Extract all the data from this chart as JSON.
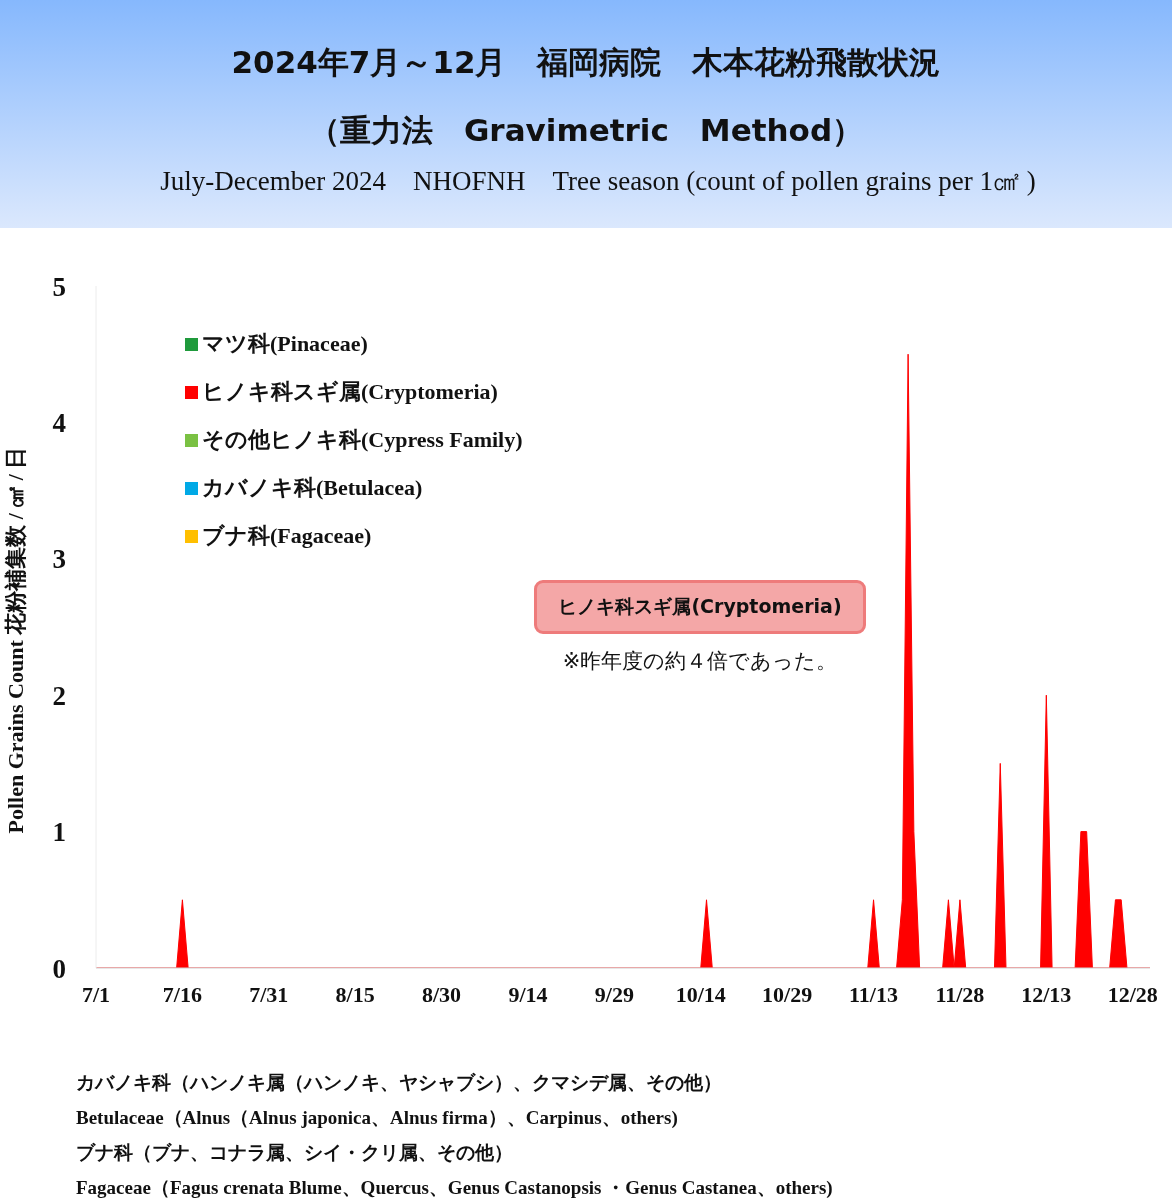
{
  "chart_data": {
    "type": "area",
    "title": "2024年7月～12月　福岡病院　木本花粉飛散状況（重力法　Gravimetric　Method）",
    "subtitle": "July-December 2024　NHOFNH　Tree season (count of pollen grains per 1㎠ )",
    "ylabel": "Pollen Grains Count 花粉補集数 / ㎠ / 日",
    "annotations": [
      "ヒノキ科スギ属(Cryptomeria)",
      "※昨年度の約４倍であった。",
      "カバノキ科（ハンノキ属（ハンノキ、ヤシャブシ）、クマシデ属、その他）",
      "Betulaceae（Alnus（Alnus japonica、Alnus firma）、Carpinus、others)",
      "ブナ科（ブナ、コナラ属、シイ・クリ属、その他）",
      "Fagaceae（Fagus crenata Blume、Quercus、Genus Castanopsis ・Genus Castanea、others)"
    ],
    "xlim": [
      "2024-07-01",
      "2024-12-31"
    ],
    "xticks": [
      {
        "value": "2024-07-01",
        "label": "7/1"
      },
      {
        "value": "2024-07-16",
        "label": "7/16"
      },
      {
        "value": "2024-07-31",
        "label": "7/31"
      },
      {
        "value": "2024-08-15",
        "label": "8/15"
      },
      {
        "value": "2024-08-30",
        "label": "8/30"
      },
      {
        "value": "2024-09-14",
        "label": "9/14"
      },
      {
        "value": "2024-09-29",
        "label": "9/29"
      },
      {
        "value": "2024-10-14",
        "label": "10/14"
      },
      {
        "value": "2024-10-29",
        "label": "10/29"
      },
      {
        "value": "2024-11-13",
        "label": "11/13"
      },
      {
        "value": "2024-11-28",
        "label": "11/28"
      },
      {
        "value": "2024-12-13",
        "label": "12/13"
      },
      {
        "value": "2024-12-28",
        "label": "12/28"
      }
    ],
    "ylim": [
      0,
      5
    ],
    "yticks": [
      0,
      1,
      2,
      3,
      4,
      5
    ],
    "grid": false,
    "legend": "top left",
    "series": [
      {
        "name": "マツ科(Pinaceae)",
        "color": "#1f9a3c"
      },
      {
        "name": "ヒノキ科スギ属(Cryptomeria)",
        "color": "#ff0000",
        "x": [
          "2024-07-01",
          "2024-07-15",
          "2024-07-16",
          "2024-07-17",
          "2024-10-14",
          "2024-10-15",
          "2024-10-16",
          "2024-11-12",
          "2024-11-13",
          "2024-11-14",
          "2024-11-17",
          "2024-11-18",
          "2024-11-19",
          "2024-11-20",
          "2024-11-21",
          "2024-11-25",
          "2024-11-26",
          "2024-11-27",
          "2024-11-28",
          "2024-11-29",
          "2024-12-04",
          "2024-12-05",
          "2024-12-06",
          "2024-12-12",
          "2024-12-13",
          "2024-12-14",
          "2024-12-18",
          "2024-12-19",
          "2024-12-20",
          "2024-12-21",
          "2024-12-24",
          "2024-12-25",
          "2024-12-26",
          "2024-12-27",
          "2024-12-31"
        ],
        "values": [
          0,
          0,
          0.5,
          0,
          0,
          0.5,
          0,
          0,
          0.5,
          0,
          0,
          0.5,
          4.5,
          1,
          0,
          0,
          0.5,
          0,
          0.5,
          0,
          0,
          1.5,
          0,
          0,
          2,
          0,
          0,
          1,
          1,
          0,
          0,
          0.5,
          0.5,
          0,
          0
        ]
      },
      {
        "name": "その他ヒノキ科(Cypress Family)",
        "color": "#7ac143"
      },
      {
        "name": "カバノキ科(Betulacea)",
        "color": "#00a9e6"
      },
      {
        "name": "ブナ科(Fagaceae)",
        "color": "#ffbf00"
      }
    ]
  }
}
